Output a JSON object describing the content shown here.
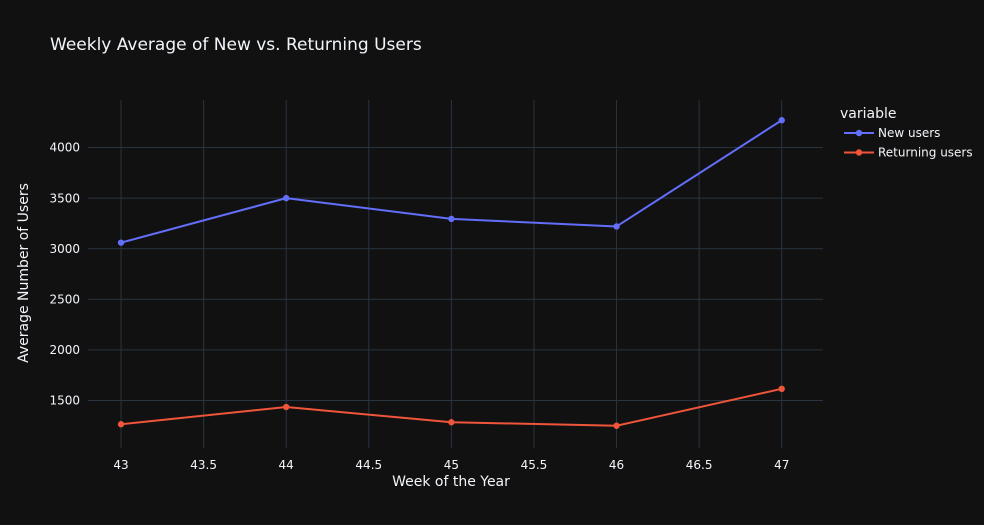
{
  "chart_data": {
    "type": "line",
    "title": "Weekly Average of New vs. Returning Users",
    "xlabel": "Week of the Year",
    "ylabel": "Average Number of Users",
    "x": [
      43,
      44,
      45,
      46,
      47
    ],
    "series": [
      {
        "name": "New users",
        "values": [
          3060,
          3500,
          3295,
          3220,
          4270
        ],
        "color": "#636efa"
      },
      {
        "name": "Returning users",
        "values": [
          1265,
          1435,
          1285,
          1250,
          1615
        ],
        "color": "#ef553b"
      }
    ],
    "xlim": [
      42.8,
      47.25
    ],
    "ylim": [
      1030,
      4470
    ],
    "xticks": [
      "43",
      "43.5",
      "44",
      "44.5",
      "45",
      "45.5",
      "46",
      "46.5",
      "47"
    ],
    "yticks": [
      "1500",
      "2000",
      "2500",
      "3000",
      "3500",
      "4000"
    ],
    "legend_title": "variable",
    "legend_position": "top-right",
    "grid": true,
    "background": "#111111",
    "grid_color": "#283442"
  }
}
